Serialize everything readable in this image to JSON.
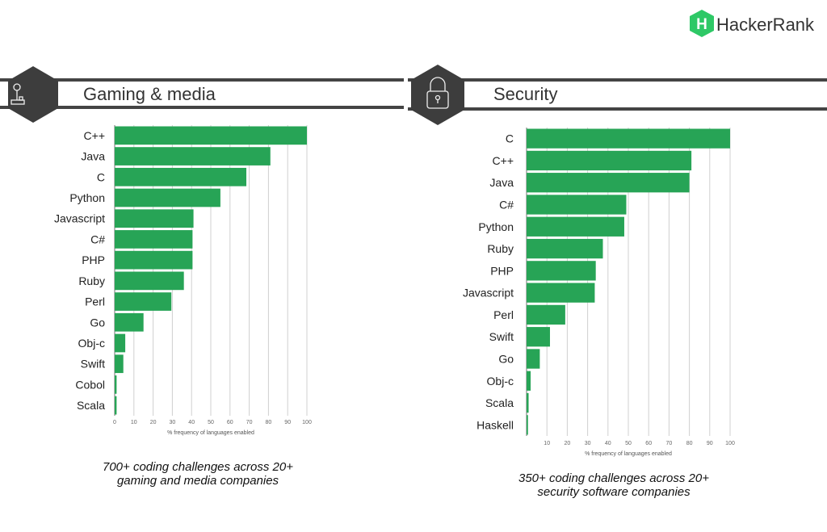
{
  "logo": {
    "text": "HackerRank",
    "mark": "H",
    "color": "#2EC866"
  },
  "colors": {
    "bar": "#27A456",
    "header": "#3d3d3d",
    "grid": "#d0d0d0"
  },
  "chart_data": [
    {
      "type": "bar",
      "orientation": "horizontal",
      "title": "Gaming & media",
      "icon": "joystick-icon",
      "xlabel": "% frequency of languages enabled",
      "xlim": [
        0,
        100
      ],
      "xticks": [
        "0",
        "10",
        "20",
        "30",
        "40",
        "50",
        "60",
        "70",
        "80",
        "90",
        "100"
      ],
      "grid": true,
      "categories": [
        "C++",
        "Java",
        "C",
        "Python",
        "Javascript",
        "C#",
        "PHP",
        "Ruby",
        "Perl",
        "Go",
        "Obj-c",
        "Swift",
        "Cobol",
        "Scala"
      ],
      "values": [
        100,
        81,
        68.5,
        55,
        41,
        40.5,
        40.5,
        36,
        29.5,
        15,
        5.5,
        4.5,
        1,
        1
      ],
      "caption": [
        "700+ coding  challenges across 20+",
        "gaming and media companies"
      ]
    },
    {
      "type": "bar",
      "orientation": "horizontal",
      "title": "Security",
      "icon": "padlock-icon",
      "xlabel": "% frequency of languages enabled",
      "xlim": [
        0,
        100
      ],
      "xticks": [
        "10",
        "20",
        "30",
        "40",
        "50",
        "60",
        "70",
        "80",
        "90",
        "100"
      ],
      "grid": true,
      "categories": [
        "C",
        "C++",
        "Java",
        "C#",
        "Python",
        "Ruby",
        "PHP",
        "Javascript",
        "Perl",
        "Swift",
        "Go",
        "Obj-c",
        "Scala",
        "Haskell"
      ],
      "values": [
        100,
        81,
        80,
        49,
        48,
        37.5,
        34,
        33.5,
        19,
        11.5,
        6.5,
        2,
        1,
        0.7
      ],
      "caption": [
        "350+ coding  challenges across 20+",
        "security software companies"
      ]
    }
  ]
}
